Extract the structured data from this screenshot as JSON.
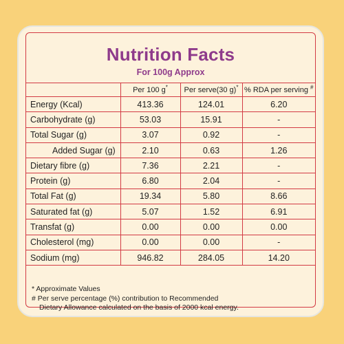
{
  "title": "Nutrition Facts",
  "subtitle": "For 100g Approx",
  "headers": {
    "blank": "",
    "per100": "Per 100 g",
    "per100_mark": "*",
    "perServe": "Per serve(30 g)",
    "perServe_mark": "*",
    "rda": "% RDA per serving",
    "rda_mark": "#"
  },
  "rows": [
    {
      "name": "Energy (Kcal)",
      "per100": "413.36",
      "perServe": "124.01",
      "rda": "6.20"
    },
    {
      "name": "Carbohydrate (g)",
      "per100": "53.03",
      "perServe": "15.91",
      "rda": "-"
    },
    {
      "name": "Total Sugar (g)",
      "per100": "3.07",
      "perServe": "0.92",
      "rda": "-"
    },
    {
      "name": "Added Sugar (g)",
      "per100": "2.10",
      "perServe": "0.63",
      "rda": "1.26"
    },
    {
      "name": "Dietary fibre (g)",
      "per100": "7.36",
      "perServe": "2.21",
      "rda": "-"
    },
    {
      "name": "Protein (g)",
      "per100": "6.80",
      "perServe": "2.04",
      "rda": "-"
    },
    {
      "name": "Total Fat (g)",
      "per100": "19.34",
      "perServe": "5.80",
      "rda": "8.66"
    },
    {
      "name": "Saturated fat (g)",
      "per100": "5.07",
      "perServe": "1.52",
      "rda": "6.91"
    },
    {
      "name": "Transfat (g)",
      "per100": "0.00",
      "perServe": "0.00",
      "rda": "0.00"
    },
    {
      "name": "Cholesterol (mg)",
      "per100": "0.00",
      "perServe": "0.00",
      "rda": "-"
    },
    {
      "name": "Sodium (mg)",
      "per100": "946.82",
      "perServe": "284.05",
      "rda": "14.20"
    }
  ],
  "notes": {
    "approx": "* Approximate Values",
    "rda_line1": "# Per serve percentage (%) contribution to Recommended",
    "rda_line2": "Dietary Allowance calculated on the basis of 2000 kcal  energy."
  },
  "colors": {
    "background": "#f9d27a",
    "card": "#fdf2dc",
    "border": "#d23a43",
    "title": "#8e3a8b"
  }
}
